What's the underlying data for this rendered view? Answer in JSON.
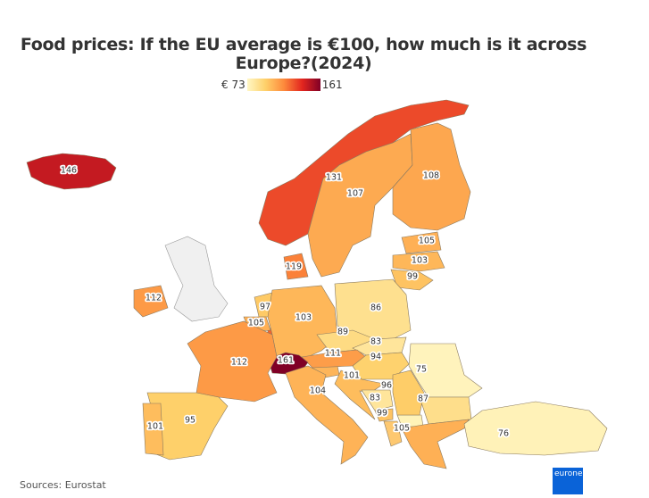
{
  "title": "Food prices: If the EU average is €100, how much is it across Europe?(2024)",
  "legend": {
    "min_label": "€ 73",
    "max_label": "161",
    "min": 73,
    "max": 161,
    "colors": [
      "#fff7c4",
      "#fed06a",
      "#fd8a3c",
      "#e3261f",
      "#800026"
    ]
  },
  "no_data_color": "#f0f0f0",
  "countries": [
    {
      "name": "Iceland",
      "value": 146
    },
    {
      "name": "Norway",
      "value": 131
    },
    {
      "name": "Sweden",
      "value": 107
    },
    {
      "name": "Finland",
      "value": 108
    },
    {
      "name": "Estonia",
      "value": 105
    },
    {
      "name": "Latvia",
      "value": 103
    },
    {
      "name": "Lithuania",
      "value": 99
    },
    {
      "name": "Denmark",
      "value": 119
    },
    {
      "name": "Ireland",
      "value": 112
    },
    {
      "name": "Netherlands",
      "value": 97
    },
    {
      "name": "Belgium",
      "value": 105
    },
    {
      "name": "Germany",
      "value": 103
    },
    {
      "name": "Poland",
      "value": 86
    },
    {
      "name": "Czechia",
      "value": 89
    },
    {
      "name": "Slovakia",
      "value": 83
    },
    {
      "name": "Austria",
      "value": 111
    },
    {
      "name": "Hungary",
      "value": 94
    },
    {
      "name": "Switzerland",
      "value": 161
    },
    {
      "name": "France",
      "value": 112
    },
    {
      "name": "Croatia",
      "value": 101
    },
    {
      "name": "Serbia",
      "value": 96
    },
    {
      "name": "Bosnia and Herzegovina",
      "value": 83
    },
    {
      "name": "Montenegro",
      "value": 99
    },
    {
      "name": "Romania",
      "value": 75
    },
    {
      "name": "Bulgaria",
      "value": 87
    },
    {
      "name": "Greece",
      "value": 105
    },
    {
      "name": "Turkey",
      "value": 76
    },
    {
      "name": "Italy",
      "value": 104
    },
    {
      "name": "Spain",
      "value": 95
    },
    {
      "name": "Portugal",
      "value": 101
    }
  ],
  "unlabeled_regions": [
    {
      "name": "Luxembourg",
      "color": "#f4622c"
    },
    {
      "name": "Slovenia",
      "color": "#fdb55a"
    },
    {
      "name": "North Macedonia",
      "color": "#fff3b8"
    },
    {
      "name": "Albania",
      "color": "#fdc870"
    },
    {
      "name": "United Kingdom",
      "color": "#f0f0f0"
    }
  ],
  "source": "Sources: Eurostat",
  "logo": "euronews."
}
